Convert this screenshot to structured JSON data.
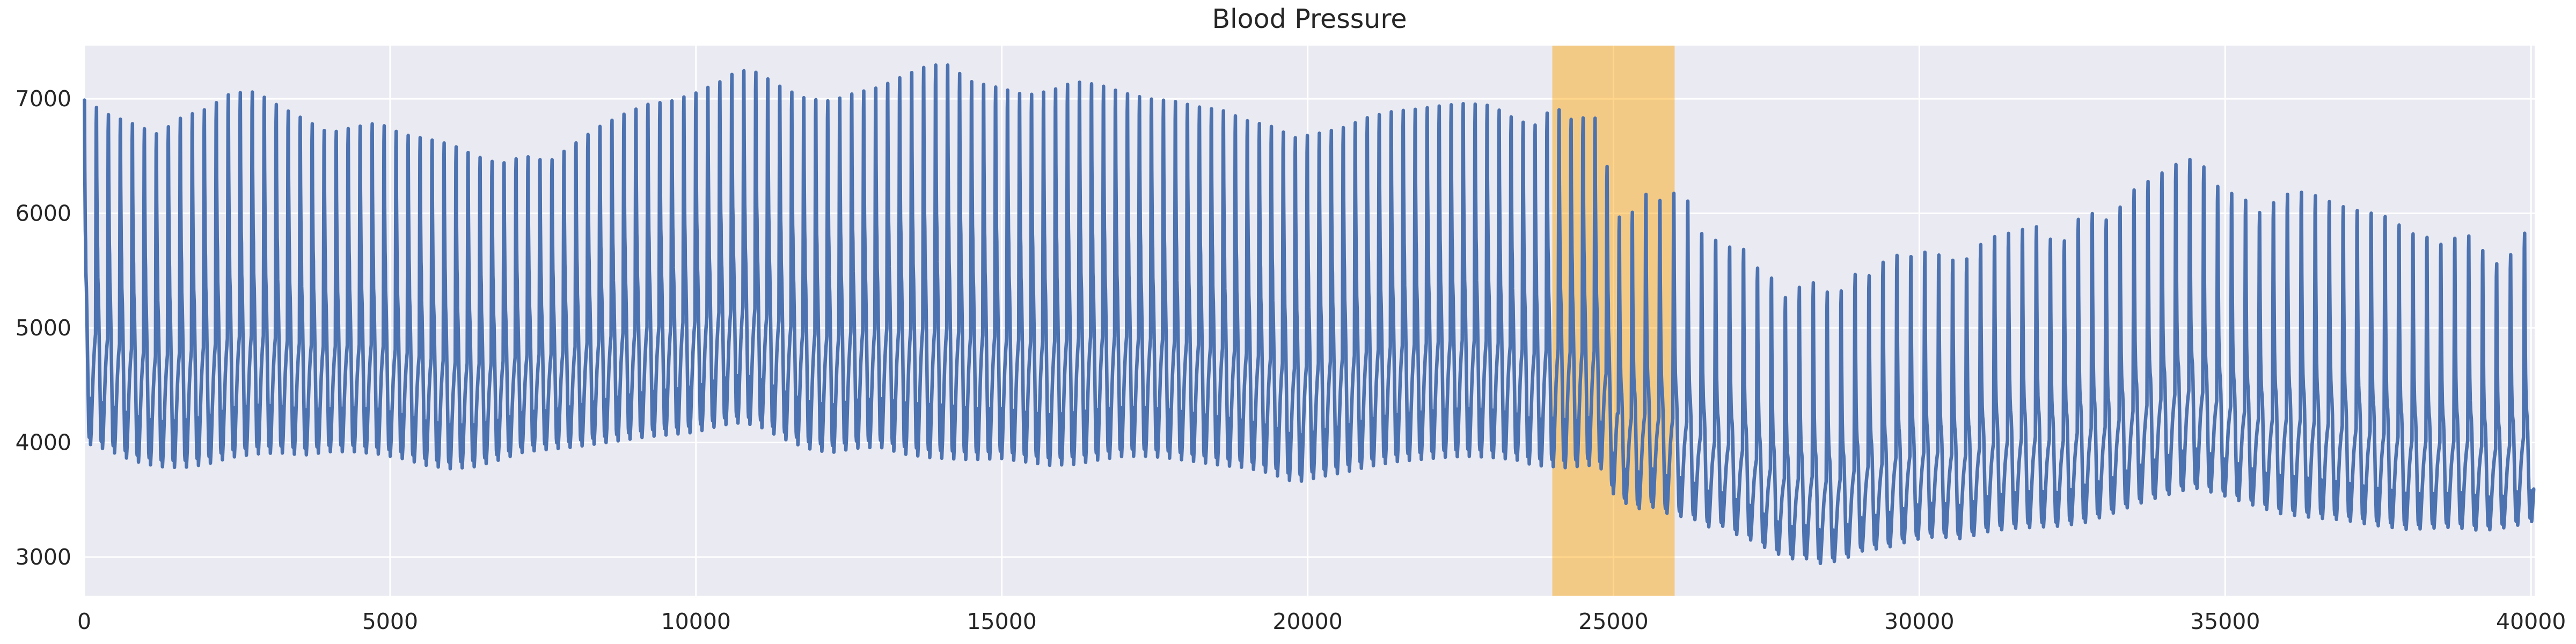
{
  "chart_data": {
    "type": "line",
    "title": "Blood Pressure",
    "xlabel": "",
    "ylabel": "",
    "x_ticks": [
      0,
      5000,
      10000,
      15000,
      20000,
      25000,
      30000,
      35000,
      40000
    ],
    "y_ticks": [
      3000,
      4000,
      5000,
      6000,
      7000
    ],
    "xlim": [
      0,
      40060
    ],
    "ylim": [
      2663,
      7464
    ],
    "grid": true,
    "legend": null,
    "colors": {
      "line": "#4C72B0",
      "plot_background": "#EAEAF2",
      "gridline": "#FFFFFF",
      "text": "#262626",
      "figure_background": "#FFFFFF"
    },
    "highlight_band": {
      "x_start": 24000,
      "x_end": 26000,
      "color": "#FFA500",
      "opacity": 0.45
    },
    "signal": {
      "period_pre": 196,
      "period_post": 228,
      "period_transition": [
        24800,
        25400
      ],
      "template_switch_x": 24950,
      "template_pre": [
        [
          0.0,
          0.33
        ],
        [
          0.055,
          0.95
        ],
        [
          0.08,
          1.0
        ],
        [
          0.105,
          0.8
        ],
        [
          0.15,
          0.62
        ],
        [
          0.175,
          0.585
        ],
        [
          0.195,
          0.5
        ],
        [
          0.24,
          0.455
        ],
        [
          0.28,
          0.38
        ],
        [
          0.38,
          0.16
        ],
        [
          0.44,
          0.035
        ],
        [
          0.47,
          0.02
        ],
        [
          0.52,
          0.135
        ],
        [
          0.585,
          0.0
        ],
        [
          0.65,
          0.045
        ],
        [
          0.73,
          0.135
        ],
        [
          0.83,
          0.235
        ],
        [
          0.92,
          0.295
        ],
        [
          1.0,
          0.33
        ]
      ],
      "template_post": [
        [
          0.0,
          0.3
        ],
        [
          0.055,
          0.95
        ],
        [
          0.08,
          1.0
        ],
        [
          0.105,
          0.75
        ],
        [
          0.15,
          0.52
        ],
        [
          0.185,
          0.44
        ],
        [
          0.22,
          0.4
        ],
        [
          0.26,
          0.38
        ],
        [
          0.3,
          0.33
        ],
        [
          0.38,
          0.14
        ],
        [
          0.44,
          0.03
        ],
        [
          0.47,
          0.015
        ],
        [
          0.52,
          0.12
        ],
        [
          0.585,
          0.0
        ],
        [
          0.65,
          0.05
        ],
        [
          0.73,
          0.13
        ],
        [
          0.83,
          0.22
        ],
        [
          0.92,
          0.27
        ],
        [
          1.0,
          0.3
        ]
      ],
      "envelope": [
        [
          0,
          6990,
          4000
        ],
        [
          400,
          6860,
          3930
        ],
        [
          800,
          6780,
          3840
        ],
        [
          1200,
          6690,
          3790
        ],
        [
          1600,
          6840,
          3780
        ],
        [
          2000,
          6910,
          3810
        ],
        [
          2400,
          7050,
          3870
        ],
        [
          2800,
          7060,
          3900
        ],
        [
          3200,
          6930,
          3910
        ],
        [
          3600,
          6820,
          3890
        ],
        [
          4000,
          6700,
          3920
        ],
        [
          4400,
          6750,
          3920
        ],
        [
          4800,
          6790,
          3900
        ],
        [
          5200,
          6690,
          3860
        ],
        [
          5600,
          6650,
          3800
        ],
        [
          6000,
          6600,
          3770
        ],
        [
          6400,
          6500,
          3790
        ],
        [
          6800,
          6430,
          3850
        ],
        [
          7200,
          6500,
          3920
        ],
        [
          7600,
          6450,
          3940
        ],
        [
          8000,
          6600,
          3960
        ],
        [
          8400,
          6750,
          3990
        ],
        [
          8800,
          6860,
          4020
        ],
        [
          9200,
          6950,
          4050
        ],
        [
          9600,
          6980,
          4070
        ],
        [
          10000,
          7050,
          4090
        ],
        [
          10400,
          7150,
          4150
        ],
        [
          10700,
          7250,
          4170
        ],
        [
          11000,
          7230,
          4150
        ],
        [
          11400,
          7100,
          4040
        ],
        [
          11800,
          7000,
          3950
        ],
        [
          12200,
          6980,
          3910
        ],
        [
          12600,
          7050,
          3950
        ],
        [
          13000,
          7100,
          3960
        ],
        [
          13400,
          7200,
          3900
        ],
        [
          13800,
          7290,
          3870
        ],
        [
          14100,
          7300,
          3860
        ],
        [
          14500,
          7150,
          3850
        ],
        [
          15000,
          7090,
          3860
        ],
        [
          15400,
          7030,
          3830
        ],
        [
          15800,
          7070,
          3800
        ],
        [
          16200,
          7150,
          3810
        ],
        [
          16600,
          7120,
          3850
        ],
        [
          17000,
          7050,
          3880
        ],
        [
          17400,
          7000,
          3880
        ],
        [
          17800,
          6980,
          3860
        ],
        [
          18200,
          6930,
          3830
        ],
        [
          18600,
          6900,
          3800
        ],
        [
          19000,
          6810,
          3780
        ],
        [
          19400,
          6760,
          3730
        ],
        [
          19800,
          6660,
          3650
        ],
        [
          20200,
          6700,
          3700
        ],
        [
          20600,
          6750,
          3740
        ],
        [
          21000,
          6840,
          3790
        ],
        [
          21400,
          6890,
          3830
        ],
        [
          21800,
          6910,
          3850
        ],
        [
          22200,
          6940,
          3870
        ],
        [
          22600,
          6960,
          3880
        ],
        [
          23000,
          6940,
          3870
        ],
        [
          23400,
          6820,
          3850
        ],
        [
          23700,
          6760,
          3800
        ],
        [
          24000,
          6920,
          3790
        ],
        [
          24200,
          6890,
          3780
        ],
        [
          24400,
          6760,
          3790
        ],
        [
          24600,
          6900,
          3800
        ],
        [
          24800,
          6760,
          3770
        ],
        [
          25000,
          6030,
          3550
        ],
        [
          25200,
          5900,
          3470
        ],
        [
          25400,
          6100,
          3420
        ],
        [
          25600,
          6200,
          3450
        ],
        [
          25800,
          6090,
          3390
        ],
        [
          26000,
          6180,
          3370
        ],
        [
          26200,
          6130,
          3340
        ],
        [
          26400,
          5830,
          3320
        ],
        [
          26600,
          5800,
          3250
        ],
        [
          26800,
          5700,
          3270
        ],
        [
          27000,
          5710,
          3200
        ],
        [
          27200,
          5670,
          3160
        ],
        [
          27400,
          5480,
          3110
        ],
        [
          27600,
          5430,
          3040
        ],
        [
          27800,
          5260,
          3010
        ],
        [
          28000,
          5340,
          2970
        ],
        [
          28200,
          5410,
          2990
        ],
        [
          28400,
          5360,
          2940
        ],
        [
          28600,
          5260,
          2960
        ],
        [
          28800,
          5360,
          2990
        ],
        [
          29000,
          5500,
          3040
        ],
        [
          29200,
          5450,
          3080
        ],
        [
          29400,
          5570,
          3060
        ],
        [
          29600,
          5640,
          3110
        ],
        [
          29800,
          5600,
          3130
        ],
        [
          30000,
          5670,
          3160
        ],
        [
          30300,
          5640,
          3180
        ],
        [
          30700,
          5560,
          3160
        ],
        [
          31100,
          5780,
          3220
        ],
        [
          31500,
          5830,
          3250
        ],
        [
          31900,
          5890,
          3260
        ],
        [
          32300,
          5700,
          3270
        ],
        [
          32700,
          6030,
          3300
        ],
        [
          33100,
          5930,
          3370
        ],
        [
          33500,
          6200,
          3450
        ],
        [
          33900,
          6330,
          3520
        ],
        [
          34300,
          6460,
          3580
        ],
        [
          34550,
          6480,
          3600
        ],
        [
          34900,
          6220,
          3550
        ],
        [
          35300,
          6130,
          3480
        ],
        [
          35600,
          5990,
          3430
        ],
        [
          35900,
          6150,
          3380
        ],
        [
          36200,
          6190,
          3360
        ],
        [
          36500,
          6150,
          3340
        ],
        [
          36800,
          6080,
          3330
        ],
        [
          37100,
          6030,
          3310
        ],
        [
          37400,
          6000,
          3280
        ],
        [
          37700,
          5960,
          3260
        ],
        [
          38000,
          5830,
          3240
        ],
        [
          38300,
          5790,
          3250
        ],
        [
          38600,
          5710,
          3260
        ],
        [
          38900,
          5850,
          3250
        ],
        [
          39200,
          5680,
          3230
        ],
        [
          39500,
          5530,
          3250
        ],
        [
          39700,
          5660,
          3270
        ],
        [
          39900,
          5830,
          3290
        ],
        [
          40060,
          5400,
          3320
        ]
      ]
    }
  }
}
